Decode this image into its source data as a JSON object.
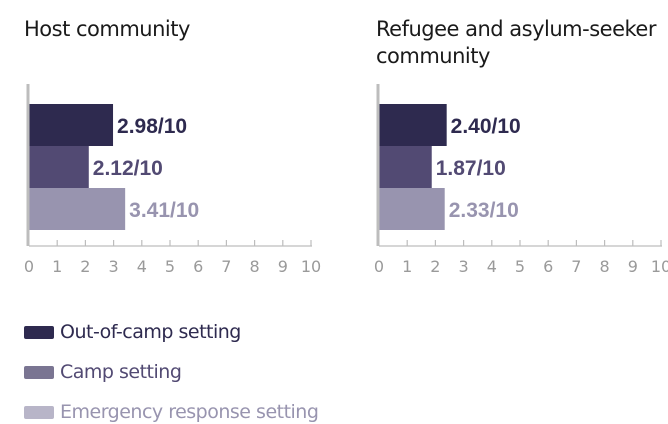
{
  "chart_data": [
    {
      "type": "bar",
      "orientation": "horizontal",
      "title": "Host community",
      "categories": [
        "Out-of-camp setting",
        "Camp setting",
        "Emergency response setting"
      ],
      "values": [
        2.98,
        2.12,
        3.41
      ],
      "value_labels": [
        "2.98/10",
        "2.12/10",
        "3.41/10"
      ],
      "xlim": [
        0,
        10
      ],
      "x_ticks": [
        "0",
        "1",
        "2",
        "3",
        "4",
        "5",
        "6",
        "7",
        "8",
        "9",
        "10"
      ],
      "grid": false
    },
    {
      "type": "bar",
      "orientation": "horizontal",
      "title": "Refugee and asylum-seeker community",
      "categories": [
        "Out-of-camp setting",
        "Camp setting",
        "Emergency response setting"
      ],
      "values": [
        2.4,
        1.87,
        2.33
      ],
      "value_labels": [
        "2.40/10",
        "1.87/10",
        "2.33/10"
      ],
      "xlim": [
        0,
        10
      ],
      "x_ticks": [
        "0",
        "1",
        "2",
        "3",
        "4",
        "5",
        "6",
        "7",
        "8",
        "9",
        "10"
      ],
      "grid": false
    }
  ],
  "legend": {
    "placement": "bottom-left",
    "items": [
      {
        "label": "Out-of-camp setting",
        "color": "#2e2a4f"
      },
      {
        "label": "Camp setting",
        "color": "#524a73"
      },
      {
        "label": "Emergency response setting",
        "color": "#9894af"
      }
    ]
  },
  "colors": {
    "bars": [
      "#2e2a4f",
      "#524a73",
      "#9894af"
    ],
    "value_labels": [
      "#2e2a4f",
      "#524a73",
      "#9894af"
    ],
    "legend_text": [
      "#2e2a4f",
      "#524a73",
      "#9894af"
    ],
    "swatches": [
      "#2e2a4f",
      "#7a7592",
      "#b8b5c8"
    ],
    "axis": "#bdbdbd",
    "tick_label": "#9a9a9a"
  }
}
